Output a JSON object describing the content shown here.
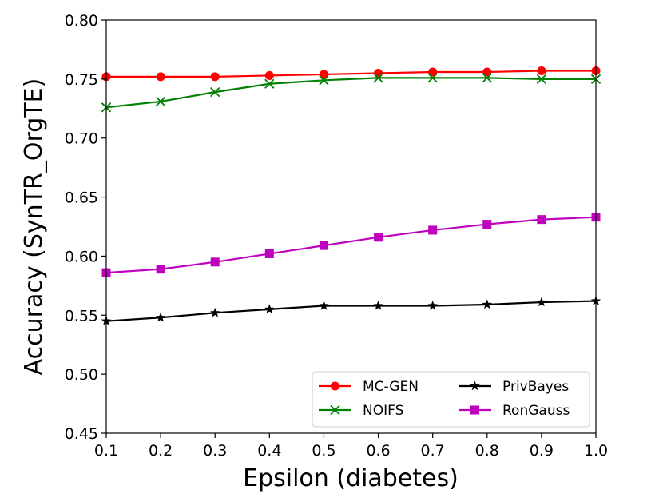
{
  "chart_data": {
    "type": "line",
    "title": "",
    "xlabel": "Epsilon (diabetes)",
    "ylabel": "Accuracy (SynTR_OrgTE)",
    "x": [
      0.1,
      0.2,
      0.3,
      0.4,
      0.5,
      0.6,
      0.7,
      0.8,
      0.9,
      1.0
    ],
    "xlim": [
      0.1,
      1.0
    ],
    "ylim": [
      0.45,
      0.8
    ],
    "xticks": [
      "0.1",
      "0.2",
      "0.3",
      "0.4",
      "0.5",
      "0.6",
      "0.7",
      "0.8",
      "0.9",
      "1.0"
    ],
    "yticks": [
      "0.45",
      "0.50",
      "0.55",
      "0.60",
      "0.65",
      "0.70",
      "0.75",
      "0.80"
    ],
    "grid": false,
    "legend_position": "bottom-right",
    "series": [
      {
        "name": "MC-GEN",
        "color": "#ff0000",
        "marker": "circle",
        "values": [
          0.752,
          0.752,
          0.752,
          0.753,
          0.754,
          0.755,
          0.756,
          0.756,
          0.757,
          0.757
        ]
      },
      {
        "name": "NOIFS",
        "color": "#008000",
        "marker": "x",
        "values": [
          0.726,
          0.731,
          0.739,
          0.746,
          0.749,
          0.751,
          0.751,
          0.751,
          0.75,
          0.75
        ]
      },
      {
        "name": "PrivBayes",
        "color": "#000000",
        "marker": "star",
        "values": [
          0.545,
          0.548,
          0.552,
          0.555,
          0.558,
          0.558,
          0.558,
          0.559,
          0.561,
          0.562
        ]
      },
      {
        "name": "RonGauss",
        "color": "#bf00bf",
        "marker": "square",
        "values": [
          0.586,
          0.589,
          0.595,
          0.602,
          0.609,
          0.616,
          0.622,
          0.627,
          0.631,
          0.633
        ]
      }
    ],
    "legend_order": [
      "MC-GEN",
      "NOIFS",
      "PrivBayes",
      "RonGauss"
    ]
  }
}
